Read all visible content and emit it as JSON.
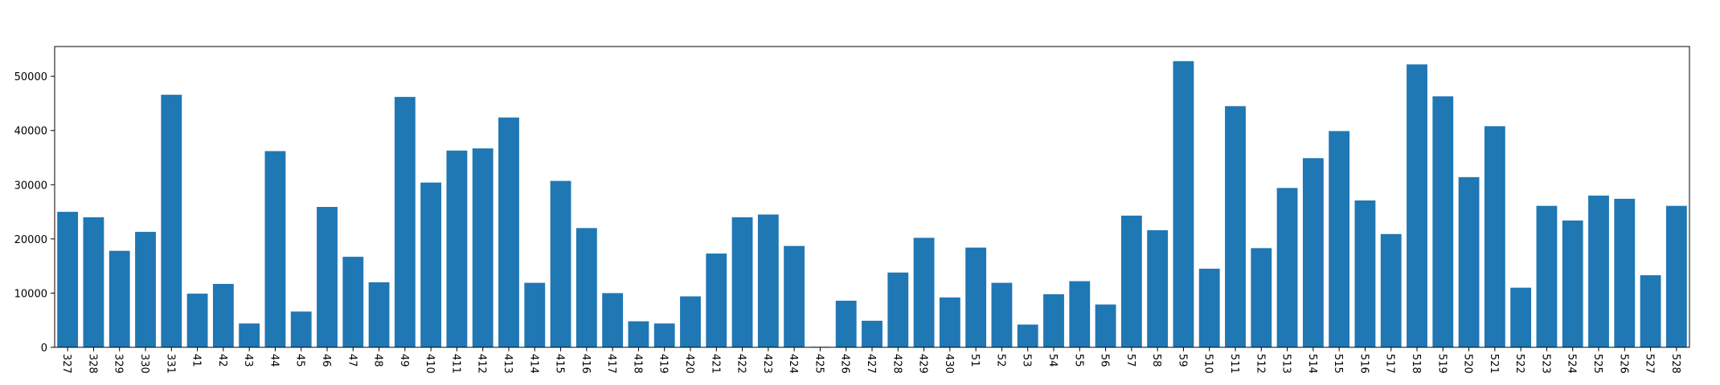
{
  "chart_data": {
    "type": "bar",
    "title": "",
    "xlabel": "",
    "ylabel": "",
    "categories": [
      "327",
      "328",
      "329",
      "330",
      "331",
      "41",
      "42",
      "43",
      "44",
      "45",
      "46",
      "47",
      "48",
      "49",
      "410",
      "411",
      "412",
      "413",
      "414",
      "415",
      "416",
      "417",
      "418",
      "419",
      "420",
      "421",
      "422",
      "423",
      "424",
      "425",
      "426",
      "427",
      "428",
      "429",
      "430",
      "51",
      "52",
      "53",
      "54",
      "55",
      "56",
      "57",
      "58",
      "59",
      "510",
      "511",
      "512",
      "513",
      "514",
      "515",
      "516",
      "517",
      "518",
      "519",
      "520",
      "521",
      "522",
      "523",
      "524",
      "525",
      "526",
      "527",
      "528"
    ],
    "values": [
      25000,
      24000,
      17800,
      21300,
      46600,
      9900,
      11700,
      4400,
      36200,
      6600,
      25900,
      16700,
      12000,
      46200,
      30400,
      36300,
      36700,
      42400,
      11900,
      30700,
      22000,
      10000,
      4800,
      4400,
      9400,
      17300,
      24000,
      24500,
      18700,
      100,
      8600,
      4900,
      13800,
      20200,
      9200,
      18400,
      11900,
      4200,
      9800,
      12200,
      7900,
      24300,
      21600,
      52800,
      14500,
      44500,
      18300,
      29400,
      34900,
      39900,
      27100,
      20900,
      52200,
      46300,
      31400,
      40800,
      11000,
      26100,
      23400,
      28000,
      27400,
      13300,
      26100
    ],
    "yticks": [
      "0",
      "10000",
      "20000",
      "30000",
      "40000",
      "50000"
    ],
    "ylim": [
      0,
      55500
    ],
    "bar_color": "#1f77b4",
    "grid": false,
    "legend": "none"
  }
}
